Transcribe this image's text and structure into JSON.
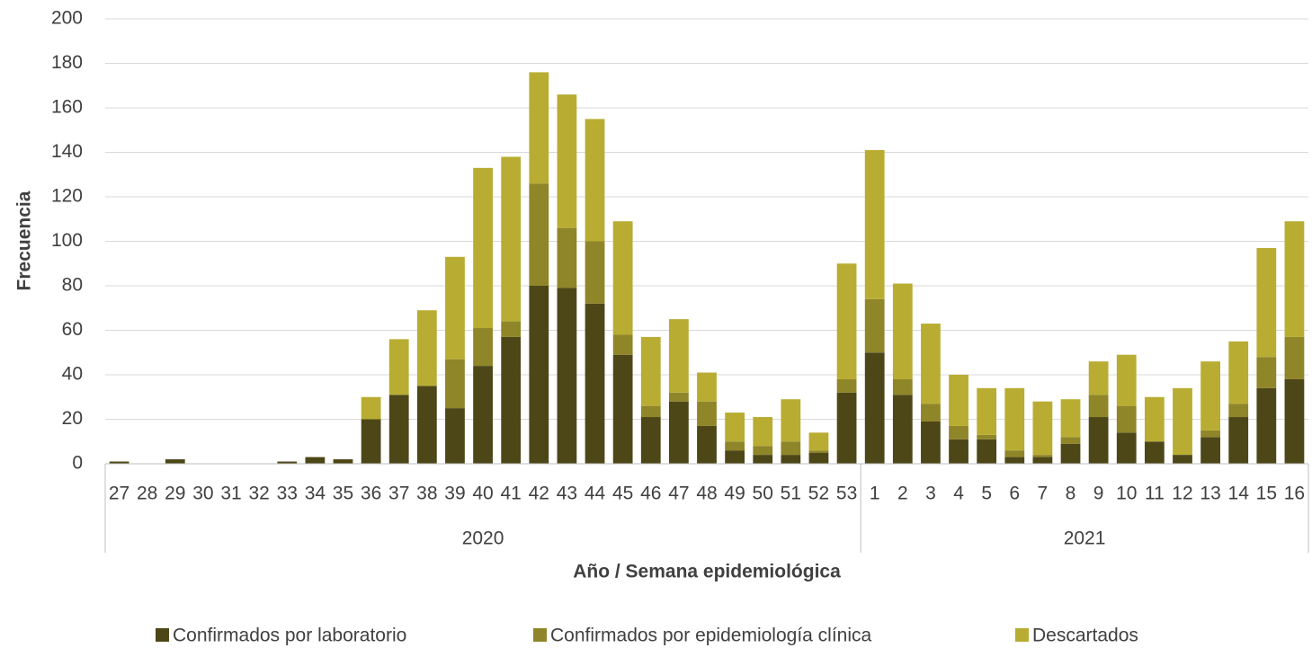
{
  "chart_data": {
    "type": "stacked_bar",
    "y_label": "Frecuencia",
    "x_label": "Año / Semana epidemiológica",
    "groups": [
      {
        "label": "2020",
        "weeks": [
          "27",
          "28",
          "29",
          "30",
          "31",
          "32",
          "33",
          "34",
          "35",
          "36",
          "37",
          "38",
          "39",
          "40",
          "41",
          "42",
          "43",
          "44",
          "45",
          "46",
          "47",
          "48",
          "49",
          "50",
          "51",
          "52",
          "53"
        ]
      },
      {
        "label": "2021",
        "weeks": [
          "1",
          "2",
          "3",
          "4",
          "5",
          "6",
          "7",
          "8",
          "9",
          "10",
          "11",
          "12",
          "13",
          "14",
          "15",
          "16"
        ]
      }
    ],
    "series": [
      {
        "name": "Confirmados por laboratorio",
        "color": "#4d4718",
        "values": [
          1,
          0,
          2,
          0,
          0,
          0,
          1,
          3,
          2,
          20,
          31,
          35,
          25,
          44,
          57,
          80,
          79,
          72,
          49,
          21,
          28,
          17,
          6,
          4,
          4,
          5,
          32,
          50,
          31,
          19,
          11,
          11,
          3,
          3,
          9,
          21,
          14,
          10,
          4,
          12,
          21,
          34,
          38
        ]
      },
      {
        "name": "Confirmados por epidemiología clínica",
        "color": "#8f8529",
        "values": [
          0,
          0,
          0,
          0,
          0,
          0,
          0,
          0,
          0,
          0,
          0,
          0,
          22,
          17,
          7,
          46,
          27,
          28,
          9,
          5,
          4,
          11,
          4,
          4,
          6,
          1,
          6,
          24,
          7,
          8,
          6,
          2,
          3,
          1,
          3,
          10,
          12,
          0,
          0,
          3,
          6,
          14,
          19
        ]
      },
      {
        "name": "Descartados",
        "color": "#b8ad32",
        "values": [
          0,
          0,
          0,
          0,
          0,
          0,
          0,
          0,
          0,
          10,
          25,
          34,
          46,
          72,
          74,
          50,
          60,
          55,
          51,
          31,
          33,
          13,
          13,
          13,
          19,
          8,
          52,
          67,
          43,
          36,
          23,
          21,
          28,
          24,
          17,
          15,
          23,
          20,
          30,
          31,
          28,
          49,
          52
        ]
      }
    ],
    "ylim": [
      0,
      200
    ],
    "yticks": [
      0,
      20,
      40,
      60,
      80,
      100,
      120,
      140,
      160,
      180,
      200
    ],
    "grid": true
  }
}
